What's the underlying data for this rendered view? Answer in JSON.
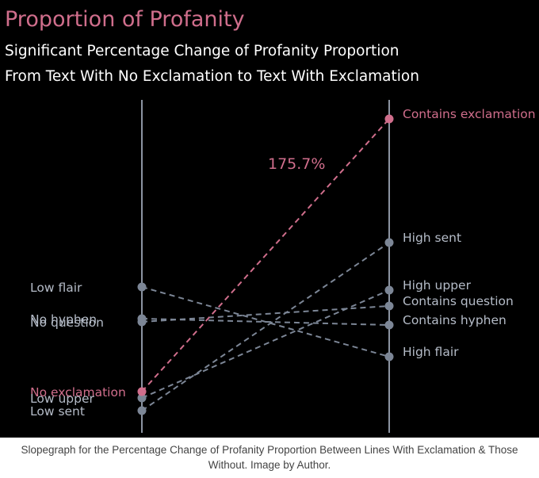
{
  "chart_data": {
    "type": "slopegraph",
    "title": "Proportion of Profanity",
    "subtitle": [
      "Significant Percentage Change of Profanity Proportion",
      "From Text With No Exclamation to Text With Exclamation"
    ],
    "annotation": "175.7%",
    "pairs": [
      {
        "left": "No exclamation",
        "right": "Contains exclamation",
        "left_value": 0.49,
        "right_value": 1.35,
        "highlight": true
      },
      {
        "left": "Low sent",
        "right": "High sent",
        "left_value": 0.43,
        "right_value": 0.96,
        "highlight": false
      },
      {
        "left": "Low upper",
        "right": "High upper",
        "left_value": 0.47,
        "right_value": 0.81,
        "highlight": false
      },
      {
        "left": "No question",
        "right": "Contains question",
        "left_value": 0.71,
        "right_value": 0.76,
        "highlight": false
      },
      {
        "left": "No hyphen",
        "right": "Contains hyphen",
        "left_value": 0.72,
        "right_value": 0.7,
        "highlight": false
      },
      {
        "left": "Low flair",
        "right": "High flair",
        "left_value": 0.82,
        "right_value": 0.6,
        "highlight": false
      }
    ],
    "colors": {
      "highlight": "#d06e8c",
      "base": "#7c8696",
      "axis": "#8c94a2",
      "label": "#b5bcc8",
      "text": "#ffffff",
      "background": "#000000"
    }
  },
  "caption": {
    "line1": "Slopegraph for the Percentage Change of Profanity Proportion Between Lines With Exclamation & Those",
    "line2": "Without. Image by Author."
  }
}
